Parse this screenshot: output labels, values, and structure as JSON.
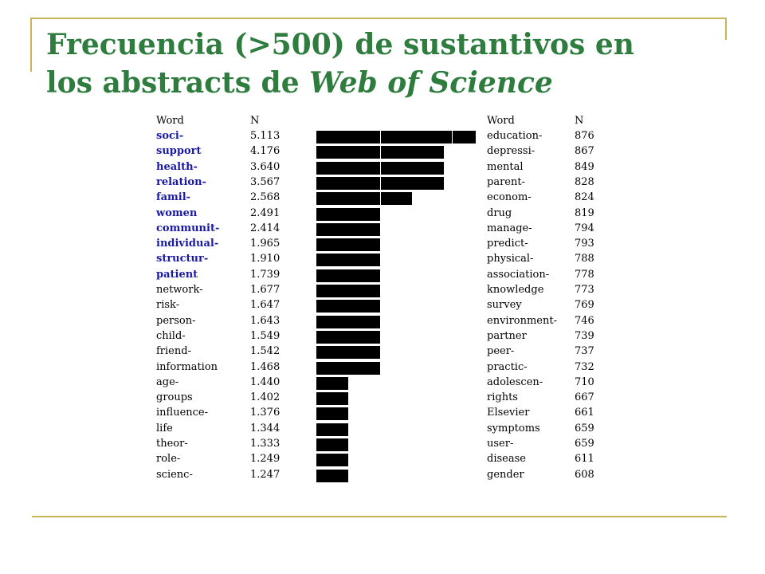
{
  "title": {
    "line1": "Frecuencia (>500) de sustantivos en",
    "line2_prefix": "los abstracts de ",
    "line2_italic": "Web of Science"
  },
  "colors": {
    "title": "#2e7d3f",
    "frame": "#c9b455",
    "highlight_words": "#1a1aa6",
    "bars": "#000000"
  },
  "chart_data": {
    "type": "bar",
    "orientation": "horizontal",
    "headers": {
      "word": "Word",
      "n": "N"
    },
    "left_table": [
      {
        "word": "soci-",
        "n": "5.113",
        "value": 5113,
        "highlight": true
      },
      {
        "word": "support",
        "n": "4.176",
        "value": 4176,
        "highlight": true
      },
      {
        "word": "health-",
        "n": "3.640",
        "value": 3640,
        "highlight": true
      },
      {
        "word": "relation-",
        "n": "3.567",
        "value": 3567,
        "highlight": true
      },
      {
        "word": "famil-",
        "n": "2.568",
        "value": 2568,
        "highlight": true
      },
      {
        "word": "women",
        "n": "2.491",
        "value": 2491,
        "highlight": true
      },
      {
        "word": "communit-",
        "n": "2.414",
        "value": 2414,
        "highlight": true
      },
      {
        "word": "individual-",
        "n": "1.965",
        "value": 1965,
        "highlight": true
      },
      {
        "word": "structur-",
        "n": "1.910",
        "value": 1910,
        "highlight": true
      },
      {
        "word": "patient",
        "n": "1.739",
        "value": 1739,
        "highlight": true
      },
      {
        "word": "network-",
        "n": "1.677",
        "value": 1677,
        "highlight": false
      },
      {
        "word": "risk-",
        "n": "1.647",
        "value": 1647,
        "highlight": false
      },
      {
        "word": "person-",
        "n": "1.643",
        "value": 1643,
        "highlight": false
      },
      {
        "word": "child-",
        "n": "1.549",
        "value": 1549,
        "highlight": false
      },
      {
        "word": "friend-",
        "n": "1.542",
        "value": 1542,
        "highlight": false
      },
      {
        "word": "information",
        "n": "1.468",
        "value": 1468,
        "highlight": false
      },
      {
        "word": "age-",
        "n": "1.440",
        "value": 1440,
        "highlight": false
      },
      {
        "word": "groups",
        "n": "1.402",
        "value": 1402,
        "highlight": false
      },
      {
        "word": "influence-",
        "n": "1.376",
        "value": 1376,
        "highlight": false
      },
      {
        "word": "life",
        "n": "1.344",
        "value": 1344,
        "highlight": false
      },
      {
        "word": "theor-",
        "n": "1.333",
        "value": 1333,
        "highlight": false
      },
      {
        "word": "role-",
        "n": "1.249",
        "value": 1249,
        "highlight": false
      },
      {
        "word": "scienc-",
        "n": "1.247",
        "value": 1247,
        "highlight": false
      }
    ],
    "right_table": [
      {
        "word": "education-",
        "n": "876"
      },
      {
        "word": "depressi-",
        "n": "867"
      },
      {
        "word": "mental",
        "n": "849"
      },
      {
        "word": "parent-",
        "n": "828"
      },
      {
        "word": "econom-",
        "n": "824"
      },
      {
        "word": "drug",
        "n": "819"
      },
      {
        "word": "manage-",
        "n": "794"
      },
      {
        "word": "predict-",
        "n": "793"
      },
      {
        "word": "physical-",
        "n": "788"
      },
      {
        "word": "association-",
        "n": "778"
      },
      {
        "word": "knowledge",
        "n": "773"
      },
      {
        "word": "survey",
        "n": "769"
      },
      {
        "word": "environment-",
        "n": "746"
      },
      {
        "word": "partner",
        "n": "739"
      },
      {
        "word": "peer-",
        "n": "737"
      },
      {
        "word": "practic-",
        "n": "732"
      },
      {
        "word": "adolescen-",
        "n": "710"
      },
      {
        "word": "rights",
        "n": "667"
      },
      {
        "word": "Elsevier",
        "n": "661"
      },
      {
        "word": "symptoms",
        "n": "659"
      },
      {
        "word": "user-",
        "n": "659"
      },
      {
        "word": "disease",
        "n": "611"
      },
      {
        "word": "gender",
        "n": "608"
      }
    ],
    "bar_segments": [
      5,
      4,
      4,
      4,
      3,
      2,
      2,
      2,
      2,
      2,
      2,
      2,
      2,
      2,
      2,
      2,
      1,
      1,
      1,
      1,
      1,
      1,
      1
    ]
  }
}
